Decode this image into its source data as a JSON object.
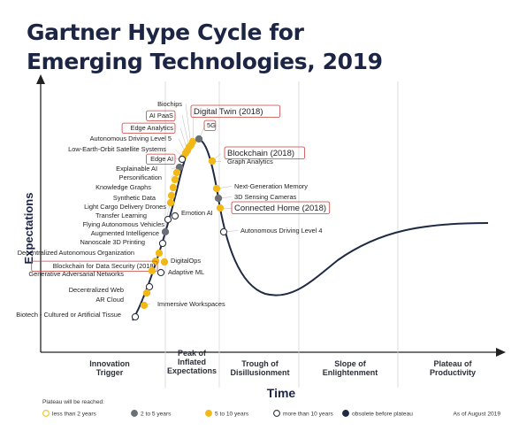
{
  "title_line1": "Gartner Hype Cycle for",
  "title_line2": "Emerging Technologies, 2019",
  "y_axis_label": "Expectations",
  "x_axis_label": "Time",
  "phases": [
    {
      "id": "innovation-trigger",
      "lines": [
        "Innovation",
        "Trigger"
      ]
    },
    {
      "id": "peak",
      "lines": [
        "Peak of",
        "Inflated",
        "Expectations"
      ]
    },
    {
      "id": "trough",
      "lines": [
        "Trough of",
        "Disillusionment"
      ]
    },
    {
      "id": "slope",
      "lines": [
        "Slope of",
        "Enlightenment"
      ]
    },
    {
      "id": "plateau",
      "lines": [
        "Plateau of",
        "Productivity"
      ]
    }
  ],
  "legend": {
    "title": "Plateau will be reached:",
    "items": [
      {
        "label": "less than 2 years",
        "fill": "#ffffff",
        "stroke": "#f2c21b"
      },
      {
        "label": "2 to 5 years",
        "fill": "#6b7077",
        "stroke": "#6b7077"
      },
      {
        "label": "5 to 10 years",
        "fill": "#f2b817",
        "stroke": "#f2b817"
      },
      {
        "label": "more than 10 years",
        "fill": "#ffffff",
        "stroke": "#2e3540"
      },
      {
        "label": "obsolete before plateau",
        "fill": "#1f2a44",
        "stroke": "#1f2a44"
      }
    ],
    "as_of": "As of August 2019"
  },
  "colors": {
    "title": "#1c2544",
    "curve": "#1f2a44",
    "gold": "#f2b817",
    "gray": "#6b7077",
    "highlight_border": "#c9403a"
  },
  "technologies": [
    {
      "name": "Biochips",
      "dot": "gold",
      "boxed": false
    },
    {
      "name": "AI PaaS",
      "dot": "gold",
      "boxed": true
    },
    {
      "name": "Digital Twin (2018)",
      "dot": "gold",
      "boxed": true
    },
    {
      "name": "5G",
      "dot": "gray",
      "boxed": true
    },
    {
      "name": "Edge Analytics",
      "dot": "gold",
      "boxed": true
    },
    {
      "name": "Autonomous Driving Level 5",
      "dot": "gold",
      "boxed": false
    },
    {
      "name": "Low-Earth-Orbit Satellite Systems",
      "dot": "gold",
      "boxed": false
    },
    {
      "name": "Edge AI",
      "dot": "white",
      "boxed": true
    },
    {
      "name": "Explainable AI",
      "dot": "gray",
      "boxed": false
    },
    {
      "name": "Personification",
      "dot": "gold",
      "boxed": false
    },
    {
      "name": "Knowledge Graphs",
      "dot": "gold",
      "boxed": false
    },
    {
      "name": "Synthetic Data",
      "dot": "gold",
      "boxed": false
    },
    {
      "name": "Light Cargo Delivery Drones",
      "dot": "gold",
      "boxed": false
    },
    {
      "name": "Transfer Learning",
      "dot": "gold",
      "boxed": false
    },
    {
      "name": "Flying Autonomous Vehicles",
      "dot": "white",
      "boxed": false
    },
    {
      "name": "Augmented Intelligence",
      "dot": "gray",
      "boxed": false
    },
    {
      "name": "Nanoscale 3D Printing",
      "dot": "white",
      "boxed": false
    },
    {
      "name": "Decentralized Autonomous Organization",
      "dot": "gold",
      "boxed": false
    },
    {
      "name": "Blockchain for Data Security (2018)",
      "dot": "gold",
      "boxed": true
    },
    {
      "name": "Generative Adversarial Networks",
      "dot": "gold",
      "boxed": false
    },
    {
      "name": "Decentralized Web",
      "dot": "white",
      "boxed": false
    },
    {
      "name": "AR Cloud",
      "dot": "gold",
      "boxed": false
    },
    {
      "name": "Biotech - Cultured or Artificial Tissue",
      "dot": "white",
      "boxed": false
    },
    {
      "name": "DigitalOps",
      "dot": "gold",
      "boxed": false
    },
    {
      "name": "Adaptive ML",
      "dot": "white",
      "boxed": false
    },
    {
      "name": "Immersive Workspaces",
      "dot": "gold",
      "boxed": false
    },
    {
      "name": "Emotion AI",
      "dot": "white",
      "boxed": false
    },
    {
      "name": "Blockchain (2018)",
      "dot": "gold",
      "boxed": true
    },
    {
      "name": "Graph Analytics",
      "dot": "gold",
      "boxed": false
    },
    {
      "name": "Next-Generation Memory",
      "dot": "gold",
      "boxed": false
    },
    {
      "name": "3D Sensing Cameras",
      "dot": "gray",
      "boxed": false
    },
    {
      "name": "Connected Home (2018)",
      "dot": "gold",
      "boxed": true
    },
    {
      "name": "Autonomous Driving Level 4",
      "dot": "white",
      "boxed": false
    }
  ]
}
